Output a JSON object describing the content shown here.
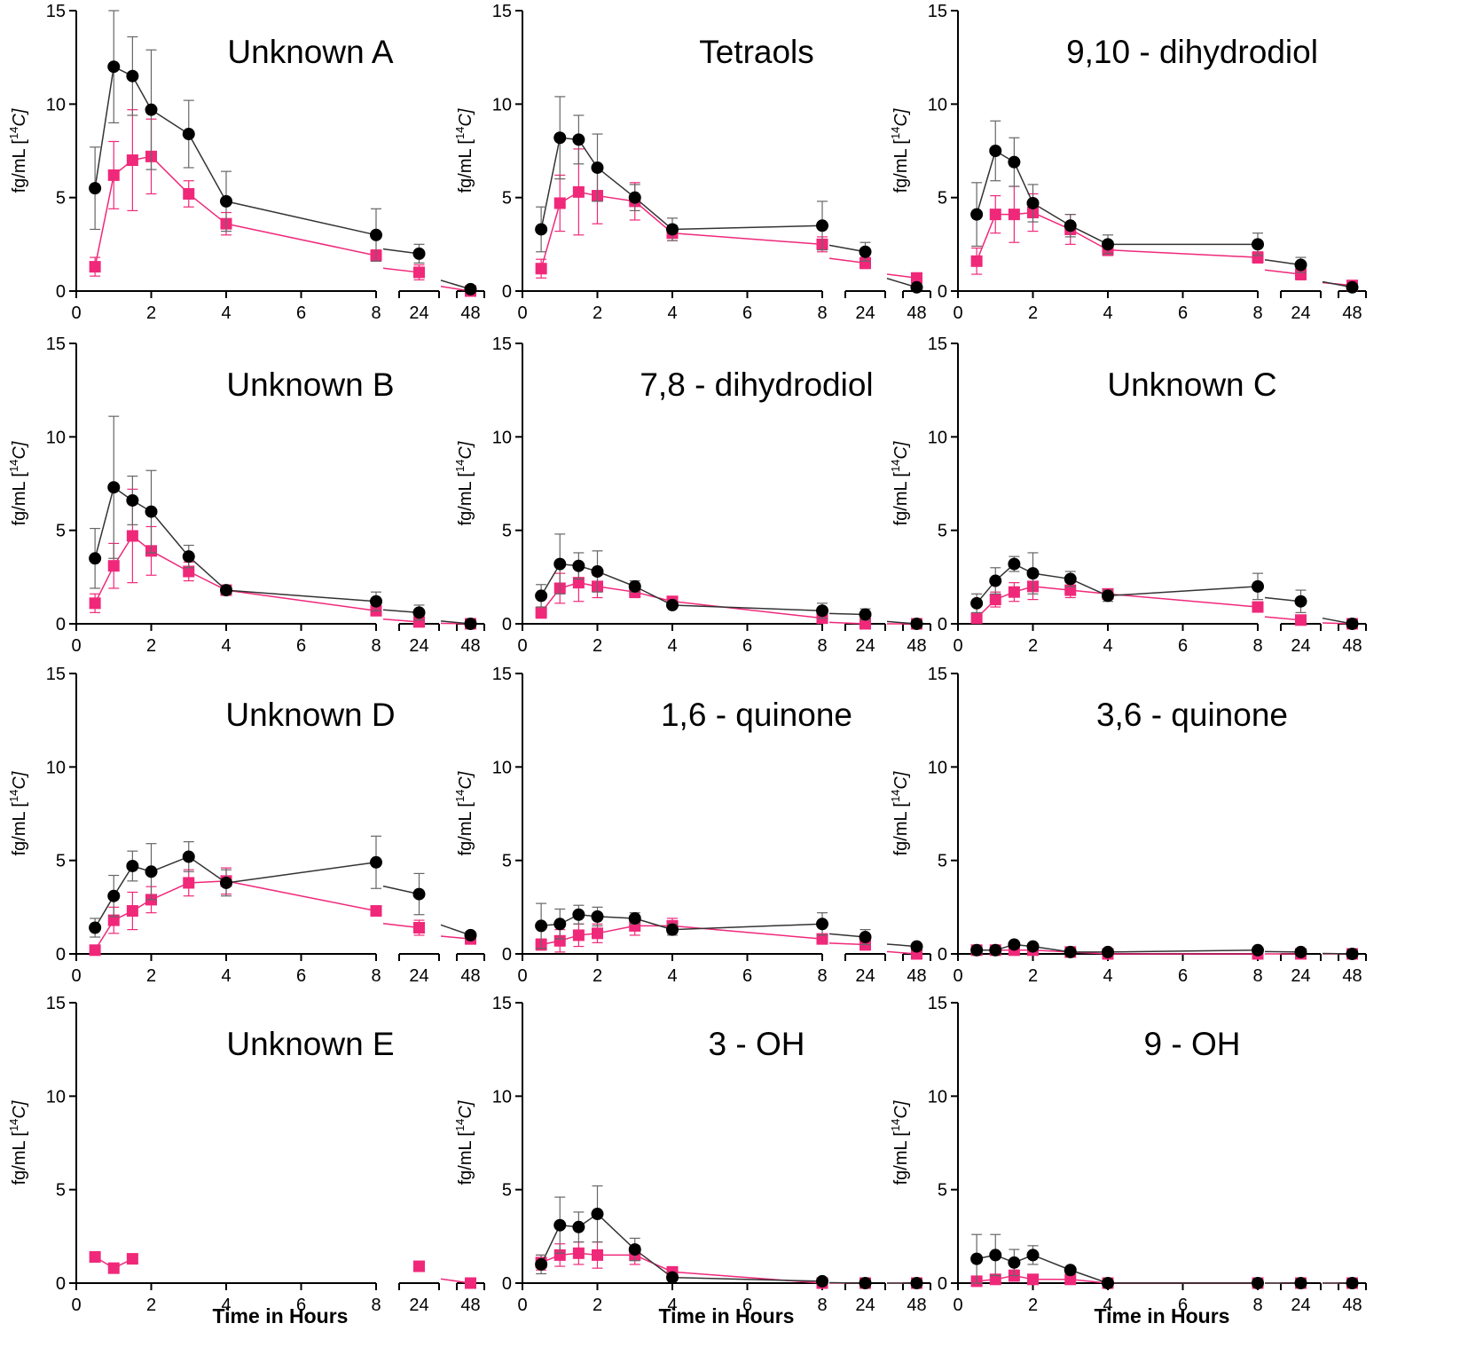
{
  "figure": {
    "y_axis_label": "fg/mL [",
    "y_axis_label_superscript": "14",
    "y_axis_label_suffix": "C]",
    "x_axis_label": "Time in Hours",
    "series_colors": {
      "black": "#000000",
      "pink": "#f0287a"
    }
  },
  "chart_data": [
    {
      "type": "line",
      "title": "Unknown A",
      "xlabel": "",
      "ylabel": "fg/mL [14C]",
      "ylim": [
        0,
        15
      ],
      "x": [
        0.5,
        1,
        1.5,
        2,
        3,
        4,
        8,
        24,
        48
      ],
      "x_tick_labels": [
        "0",
        "2",
        "4",
        "6",
        "8",
        "24",
        "48"
      ],
      "y_tick_labels": [
        "0",
        "5",
        "10",
        "15"
      ],
      "series": [
        {
          "name": "black circles",
          "color": "#000000",
          "values": [
            5.5,
            12.0,
            11.5,
            9.7,
            8.4,
            4.8,
            3.0,
            2.0,
            0.1
          ],
          "errors": [
            2.2,
            3.0,
            2.1,
            3.2,
            1.8,
            1.6,
            1.4,
            0.5,
            0.1
          ]
        },
        {
          "name": "pink squares",
          "color": "#f0287a",
          "values": [
            1.3,
            6.2,
            7.0,
            7.2,
            5.2,
            3.6,
            1.9,
            1.0,
            0.0
          ],
          "errors": [
            0.5,
            1.8,
            2.7,
            2.0,
            0.7,
            0.6,
            0.3,
            0.4,
            0.0
          ]
        }
      ]
    },
    {
      "type": "line",
      "title": "Tetraols",
      "xlabel": "",
      "ylabel": "fg/mL [14C]",
      "ylim": [
        0,
        15
      ],
      "x": [
        0.5,
        1,
        1.5,
        2,
        3,
        4,
        8,
        24,
        48
      ],
      "x_tick_labels": [
        "0",
        "2",
        "4",
        "6",
        "8",
        "24",
        "48"
      ],
      "y_tick_labels": [
        "0",
        "5",
        "10",
        "15"
      ],
      "series": [
        {
          "name": "black circles",
          "color": "#000000",
          "values": [
            3.3,
            8.2,
            8.1,
            6.6,
            5.0,
            3.3,
            3.5,
            2.1,
            0.2
          ],
          "errors": [
            1.2,
            2.2,
            1.3,
            1.8,
            0.7,
            0.6,
            1.3,
            0.5,
            0.1
          ]
        },
        {
          "name": "pink squares",
          "color": "#f0287a",
          "values": [
            1.2,
            4.7,
            5.3,
            5.1,
            4.8,
            3.1,
            2.5,
            1.5,
            0.7
          ],
          "errors": [
            0.5,
            1.5,
            2.3,
            1.5,
            1.0,
            0.4,
            0.4,
            0.3,
            0.2
          ]
        }
      ]
    },
    {
      "type": "line",
      "title": "9,10 - dihydrodiol",
      "xlabel": "",
      "ylabel": "fg/mL [14C]",
      "ylim": [
        0,
        15
      ],
      "x": [
        0.5,
        1,
        1.5,
        2,
        3,
        4,
        8,
        24,
        48
      ],
      "x_tick_labels": [
        "0",
        "2",
        "4",
        "6",
        "8",
        "24",
        "48"
      ],
      "y_tick_labels": [
        "0",
        "5",
        "10",
        "15"
      ],
      "series": [
        {
          "name": "black circles",
          "color": "#000000",
          "values": [
            4.1,
            7.5,
            6.9,
            4.7,
            3.5,
            2.5,
            2.5,
            1.4,
            0.2
          ],
          "errors": [
            1.7,
            1.6,
            1.3,
            1.0,
            0.6,
            0.5,
            0.6,
            0.4,
            0.1
          ]
        },
        {
          "name": "pink squares",
          "color": "#f0287a",
          "values": [
            1.6,
            4.1,
            4.1,
            4.2,
            3.3,
            2.2,
            1.8,
            0.9,
            0.3
          ],
          "errors": [
            0.7,
            1.0,
            1.5,
            1.0,
            0.8,
            0.3,
            0.3,
            0.3,
            0.1
          ]
        }
      ]
    },
    {
      "type": "line",
      "title": "Unknown B",
      "xlabel": "",
      "ylabel": "fg/mL [14C]",
      "ylim": [
        0,
        15
      ],
      "x": [
        0.5,
        1,
        1.5,
        2,
        3,
        4,
        8,
        24,
        48
      ],
      "x_tick_labels": [
        "0",
        "2",
        "4",
        "6",
        "8",
        "24",
        "48"
      ],
      "y_tick_labels": [
        "0",
        "5",
        "10",
        "15"
      ],
      "series": [
        {
          "name": "black circles",
          "color": "#000000",
          "values": [
            3.5,
            7.3,
            6.6,
            6.0,
            3.6,
            1.8,
            1.2,
            0.6,
            0.0
          ],
          "errors": [
            1.6,
            3.8,
            1.3,
            2.2,
            0.6,
            0.2,
            0.5,
            0.4,
            0.0
          ]
        },
        {
          "name": "pink squares",
          "color": "#f0287a",
          "values": [
            1.1,
            3.1,
            4.7,
            3.9,
            2.8,
            1.8,
            0.7,
            0.1,
            0.0
          ],
          "errors": [
            0.5,
            1.2,
            2.5,
            1.3,
            0.5,
            0.2,
            0.2,
            0.1,
            0.0
          ]
        }
      ]
    },
    {
      "type": "line",
      "title": "7,8 - dihydrodiol",
      "xlabel": "",
      "ylabel": "fg/mL [14C]",
      "ylim": [
        0,
        15
      ],
      "x": [
        0.5,
        1,
        1.5,
        2,
        3,
        4,
        8,
        24,
        48
      ],
      "x_tick_labels": [
        "0",
        "2",
        "4",
        "6",
        "8",
        "24",
        "48"
      ],
      "y_tick_labels": [
        "0",
        "5",
        "10",
        "15"
      ],
      "series": [
        {
          "name": "black circles",
          "color": "#000000",
          "values": [
            1.5,
            3.2,
            3.1,
            2.8,
            2.0,
            1.0,
            0.7,
            0.5,
            0.0
          ],
          "errors": [
            0.6,
            1.6,
            0.7,
            1.1,
            0.3,
            0.1,
            0.4,
            0.3,
            0.0
          ]
        },
        {
          "name": "pink squares",
          "color": "#f0287a",
          "values": [
            0.6,
            1.9,
            2.2,
            2.0,
            1.7,
            1.2,
            0.3,
            0.0,
            0.0
          ],
          "errors": [
            0.3,
            0.8,
            1.0,
            0.6,
            0.3,
            0.2,
            0.2,
            0.0,
            0.0
          ]
        }
      ]
    },
    {
      "type": "line",
      "title": "Unknown C",
      "xlabel": "",
      "ylabel": "fg/mL [14C]",
      "ylim": [
        0,
        15
      ],
      "x": [
        0.5,
        1,
        1.5,
        2,
        3,
        4,
        8,
        24,
        48
      ],
      "x_tick_labels": [
        "0",
        "2",
        "4",
        "6",
        "8",
        "24",
        "48"
      ],
      "y_tick_labels": [
        "0",
        "5",
        "10",
        "15"
      ],
      "series": [
        {
          "name": "black circles",
          "color": "#000000",
          "values": [
            1.1,
            2.3,
            3.2,
            2.7,
            2.4,
            1.5,
            2.0,
            1.2,
            0.0
          ],
          "errors": [
            0.5,
            0.7,
            0.4,
            1.1,
            0.4,
            0.3,
            0.7,
            0.6,
            0.0
          ]
        },
        {
          "name": "pink squares",
          "color": "#f0287a",
          "values": [
            0.3,
            1.3,
            1.7,
            2.0,
            1.8,
            1.6,
            0.9,
            0.2,
            0.0
          ],
          "errors": [
            0.2,
            0.4,
            0.5,
            0.7,
            0.4,
            0.2,
            0.2,
            0.2,
            0.0
          ]
        }
      ]
    },
    {
      "type": "line",
      "title": "Unknown D",
      "xlabel": "",
      "ylabel": "fg/mL [14C]",
      "ylim": [
        0,
        15
      ],
      "x": [
        0.5,
        1,
        1.5,
        2,
        3,
        4,
        8,
        24,
        48
      ],
      "x_tick_labels": [
        "0",
        "2",
        "4",
        "6",
        "8",
        "24",
        "48"
      ],
      "y_tick_labels": [
        "0",
        "5",
        "10",
        "15"
      ],
      "series": [
        {
          "name": "black circles",
          "color": "#000000",
          "values": [
            1.4,
            3.1,
            4.7,
            4.4,
            5.2,
            3.8,
            4.9,
            3.2,
            1.0
          ],
          "errors": [
            0.5,
            1.1,
            0.8,
            1.5,
            0.8,
            0.7,
            1.4,
            1.1,
            0.2
          ]
        },
        {
          "name": "pink squares",
          "color": "#f0287a",
          "values": [
            0.2,
            1.8,
            2.3,
            2.9,
            3.8,
            3.9,
            2.3,
            1.4,
            0.8
          ],
          "errors": [
            0.1,
            0.7,
            1.0,
            0.7,
            0.7,
            0.7,
            0.2,
            0.4,
            0.1
          ]
        }
      ]
    },
    {
      "type": "line",
      "title": "1,6 - quinone",
      "xlabel": "",
      "ylabel": "fg/mL [14C]",
      "ylim": [
        0,
        15
      ],
      "x": [
        0.5,
        1,
        1.5,
        2,
        3,
        4,
        8,
        24,
        48
      ],
      "x_tick_labels": [
        "0",
        "2",
        "4",
        "6",
        "8",
        "24",
        "48"
      ],
      "y_tick_labels": [
        "0",
        "5",
        "10",
        "15"
      ],
      "series": [
        {
          "name": "black circles",
          "color": "#000000",
          "values": [
            1.5,
            1.6,
            2.1,
            2.0,
            1.9,
            1.3,
            1.6,
            0.9,
            0.4
          ],
          "errors": [
            1.2,
            0.8,
            0.5,
            0.5,
            0.3,
            0.3,
            0.6,
            0.4,
            0.1
          ]
        },
        {
          "name": "pink squares",
          "color": "#f0287a",
          "values": [
            0.5,
            0.7,
            1.0,
            1.1,
            1.5,
            1.5,
            0.8,
            0.5,
            0.0
          ],
          "errors": [
            0.3,
            0.6,
            0.6,
            0.5,
            0.5,
            0.4,
            0.2,
            0.3,
            0.0
          ]
        }
      ]
    },
    {
      "type": "line",
      "title": "3,6 - quinone",
      "xlabel": "",
      "ylabel": "fg/mL [14C]",
      "ylim": [
        0,
        15
      ],
      "x": [
        0.5,
        1,
        1.5,
        2,
        3,
        4,
        8,
        24,
        48
      ],
      "x_tick_labels": [
        "0",
        "2",
        "4",
        "6",
        "8",
        "24",
        "48"
      ],
      "y_tick_labels": [
        "0",
        "5",
        "10",
        "15"
      ],
      "series": [
        {
          "name": "black circles",
          "color": "#000000",
          "values": [
            0.2,
            0.2,
            0.5,
            0.4,
            0.1,
            0.1,
            0.2,
            0.1,
            0.0
          ],
          "errors": [
            0.1,
            0.1,
            0.1,
            0.1,
            0.05,
            0.05,
            0.1,
            0.05,
            0.0
          ]
        },
        {
          "name": "pink squares",
          "color": "#f0287a",
          "values": [
            0.2,
            0.2,
            0.2,
            0.2,
            0.1,
            0.0,
            0.0,
            0.0,
            0.0
          ],
          "errors": [
            0.1,
            0.1,
            0.1,
            0.1,
            0.05,
            0.0,
            0.0,
            0.0,
            0.0
          ]
        }
      ]
    },
    {
      "type": "line",
      "title": "Unknown E",
      "xlabel": "Time in Hours",
      "ylabel": "fg/mL [14C]",
      "ylim": [
        0,
        15
      ],
      "x": [
        0.5,
        1,
        1.5,
        2,
        3,
        4,
        8,
        24,
        48
      ],
      "x_tick_labels": [
        "0",
        "2",
        "4",
        "6",
        "8",
        "24",
        "48"
      ],
      "y_tick_labels": [
        "0",
        "5",
        "10",
        "15"
      ],
      "series": [
        {
          "name": "black circles",
          "color": "#000000",
          "values": [
            null,
            null,
            null,
            null,
            null,
            null,
            null,
            null,
            null
          ],
          "errors": [
            0,
            0,
            0,
            0,
            0,
            0,
            0,
            0,
            0
          ]
        },
        {
          "name": "pink squares",
          "color": "#f0287a",
          "values": [
            1.4,
            0.8,
            1.3,
            null,
            null,
            null,
            null,
            0.9,
            0.0
          ],
          "errors": [
            0.1,
            0.1,
            0.1,
            0,
            0,
            0,
            0,
            0.1,
            0.0
          ]
        }
      ]
    },
    {
      "type": "line",
      "title": "3 - OH",
      "xlabel": "Time in Hours",
      "ylabel": "fg/mL [14C]",
      "ylim": [
        0,
        15
      ],
      "x": [
        0.5,
        1,
        1.5,
        2,
        3,
        4,
        8,
        24,
        48
      ],
      "x_tick_labels": [
        "0",
        "2",
        "4",
        "6",
        "8",
        "24",
        "48"
      ],
      "y_tick_labels": [
        "0",
        "5",
        "10",
        "15"
      ],
      "series": [
        {
          "name": "black circles",
          "color": "#000000",
          "values": [
            1.0,
            3.1,
            3.0,
            3.7,
            1.8,
            0.3,
            0.1,
            0.0,
            0.0
          ],
          "errors": [
            0.5,
            1.5,
            0.8,
            1.5,
            0.6,
            0.1,
            0.1,
            0.0,
            0.0
          ]
        },
        {
          "name": "pink squares",
          "color": "#f0287a",
          "values": [
            1.1,
            1.5,
            1.6,
            1.5,
            1.5,
            0.6,
            0.0,
            0.0,
            0.0
          ],
          "errors": [
            0.4,
            0.6,
            0.6,
            0.7,
            0.5,
            0.1,
            0.0,
            0.0,
            0.0
          ]
        }
      ]
    },
    {
      "type": "line",
      "title": "9 - OH",
      "xlabel": "Time in Hours",
      "ylabel": "fg/mL [14C]",
      "ylim": [
        0,
        15
      ],
      "x": [
        0.5,
        1,
        1.5,
        2,
        3,
        4,
        8,
        24,
        48
      ],
      "x_tick_labels": [
        "0",
        "2",
        "4",
        "6",
        "8",
        "24",
        "48"
      ],
      "y_tick_labels": [
        "0",
        "5",
        "10",
        "15"
      ],
      "series": [
        {
          "name": "black circles",
          "color": "#000000",
          "values": [
            1.3,
            1.5,
            1.1,
            1.5,
            0.7,
            0.0,
            0.0,
            0.0,
            0.0
          ],
          "errors": [
            1.3,
            1.1,
            0.7,
            0.5,
            0.1,
            0.0,
            0.0,
            0.0,
            0.0
          ]
        },
        {
          "name": "pink squares",
          "color": "#f0287a",
          "values": [
            0.1,
            0.2,
            0.4,
            0.2,
            0.2,
            0.0,
            0.0,
            0.0,
            0.0
          ],
          "errors": [
            0.1,
            0.1,
            0.3,
            0.1,
            0.1,
            0.0,
            0.0,
            0.0,
            0.0
          ]
        }
      ]
    }
  ]
}
